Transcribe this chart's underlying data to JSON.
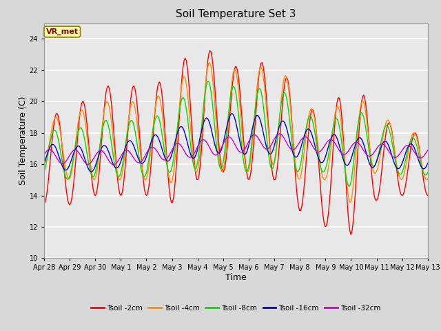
{
  "title": "Soil Temperature Set 3",
  "xlabel": "Time",
  "ylabel": "Soil Temperature (C)",
  "ylim": [
    10,
    25
  ],
  "yticks": [
    10,
    12,
    14,
    16,
    18,
    20,
    22,
    24
  ],
  "annotation": "VR_met",
  "annotation_color": "#8B0000",
  "annotation_bg": "#FFFFAA",
  "fig_bg": "#D8D8D8",
  "plot_bg": "#E8E8E8",
  "series_colors": {
    "2cm": "#FF0000",
    "4cm": "#FF8C00",
    "8cm": "#00DD00",
    "16cm": "#0000CC",
    "32cm": "#CC00CC"
  },
  "xtick_labels": [
    "Apr 28",
    "Apr 29",
    "Apr 30",
    "May 1",
    "May 2",
    "May 3",
    "May 4",
    "May 5",
    "May 6",
    "May 7",
    "May 8",
    "May 9",
    "May 10",
    "May 11",
    "May 12",
    "May 13"
  ],
  "legend_labels": [
    "Tsoil -2cm",
    "Tsoil -4cm",
    "Tsoil -8cm",
    "Tsoil -16cm",
    "Tsoil -32cm"
  ]
}
